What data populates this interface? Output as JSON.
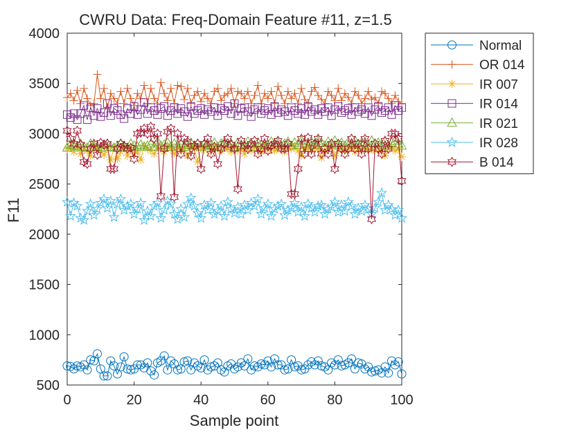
{
  "chart_data": {
    "type": "line",
    "title": "CWRU Data: Freq-Domain Feature #11, z=1.5",
    "xlabel": "Sample point",
    "ylabel": "F11",
    "xlim": [
      0,
      100
    ],
    "ylim": [
      500,
      4000
    ],
    "xticks": [
      0,
      20,
      40,
      60,
      80,
      100
    ],
    "yticks": [
      500,
      1000,
      1500,
      2000,
      2500,
      3000,
      3500,
      4000
    ],
    "grid": false,
    "legend_position": "outside-top-right",
    "x": [
      0,
      1,
      2,
      3,
      4,
      5,
      6,
      7,
      8,
      9,
      10,
      11,
      12,
      13,
      14,
      15,
      16,
      17,
      18,
      19,
      20,
      21,
      22,
      23,
      24,
      25,
      26,
      27,
      28,
      29,
      30,
      31,
      32,
      33,
      34,
      35,
      36,
      37,
      38,
      39,
      40,
      41,
      42,
      43,
      44,
      45,
      46,
      47,
      48,
      49,
      50,
      51,
      52,
      53,
      54,
      55,
      56,
      57,
      58,
      59,
      60,
      61,
      62,
      63,
      64,
      65,
      66,
      67,
      68,
      69,
      70,
      71,
      72,
      73,
      74,
      75,
      76,
      77,
      78,
      79,
      80,
      81,
      82,
      83,
      84,
      85,
      86,
      87,
      88,
      89,
      90,
      91,
      92,
      93,
      94,
      95,
      96,
      97,
      98,
      99,
      100
    ],
    "series": [
      {
        "name": "Normal",
        "color": "#0072BD",
        "marker": "circle",
        "values": [
          690,
          685,
          660,
          690,
          680,
          700,
          650,
          750,
          740,
          810,
          660,
          590,
          590,
          740,
          690,
          610,
          680,
          780,
          660,
          650,
          660,
          700,
          700,
          670,
          720,
          640,
          600,
          720,
          740,
          790,
          650,
          740,
          710,
          650,
          660,
          730,
          740,
          650,
          720,
          690,
          670,
          750,
          650,
          680,
          690,
          720,
          650,
          630,
          690,
          710,
          660,
          680,
          720,
          690,
          760,
          650,
          690,
          680,
          710,
          700,
          740,
          680,
          760,
          700,
          700,
          650,
          660,
          750,
          680,
          690,
          650,
          660,
          700,
          730,
          700,
          740,
          690,
          680,
          650,
          720,
          700,
          750,
          690,
          700,
          720,
          760,
          660,
          720,
          710,
          660,
          680,
          630,
          640,
          650,
          620,
          680,
          620,
          740,
          700,
          730,
          610
        ]
      },
      {
        "name": "OR 014",
        "color": "#D95319",
        "marker": "plus",
        "values": [
          3360,
          3400,
          3330,
          3430,
          3300,
          3450,
          3350,
          3280,
          3300,
          3590,
          3350,
          3450,
          3250,
          3400,
          3350,
          3300,
          3420,
          3300,
          3450,
          3350,
          3280,
          3400,
          3350,
          3480,
          3300,
          3450,
          3350,
          3300,
          3510,
          3400,
          3330,
          3450,
          3300,
          3480,
          3470,
          3340,
          3450,
          3300,
          3380,
          3420,
          3320,
          3400,
          3350,
          3300,
          3420,
          3450,
          3330,
          3380,
          3400,
          3450,
          3300,
          3420,
          3400,
          3350,
          3420,
          3300,
          3380,
          3480,
          3300,
          3400,
          3350,
          3420,
          3300,
          3470,
          3380,
          3300,
          3420,
          3350,
          3400,
          3300,
          3450,
          3340,
          3300,
          3420,
          3460,
          3380,
          3340,
          3300,
          3420,
          3380,
          3330,
          3450,
          3330,
          3400,
          3360,
          3300,
          3420,
          3380,
          3300,
          3350,
          3420,
          3340,
          3360,
          3300,
          3420,
          3400,
          3350,
          3300,
          3380,
          3320,
          3300
        ]
      },
      {
        "name": "IR 007",
        "color": "#EDB120",
        "marker": "asterisk",
        "values": [
          2850,
          2860,
          2820,
          2870,
          2800,
          2850,
          2830,
          2780,
          2880,
          2860,
          2830,
          2790,
          2850,
          2740,
          2860,
          2750,
          2820,
          2870,
          2780,
          2850,
          2800,
          2820,
          2740,
          2880,
          2850,
          2830,
          2800,
          2870,
          2850,
          2820,
          2880,
          2850,
          2800,
          2860,
          2830,
          2850,
          2780,
          2870,
          2850,
          2720,
          2860,
          2840,
          2870,
          2820,
          2880,
          2850,
          2830,
          2860,
          2850,
          2820,
          2870,
          2830,
          2850,
          2800,
          2860,
          2830,
          2870,
          2850,
          2820,
          2880,
          2840,
          2860,
          2830,
          2850,
          2870,
          2820,
          2860,
          2850,
          2880,
          2830,
          2780,
          2850,
          2870,
          2830,
          2860,
          2850,
          2760,
          2830,
          2870,
          2850,
          2780,
          2840,
          2860,
          2830,
          2850,
          2870,
          2820,
          2850,
          2830,
          2860,
          2840,
          2850,
          2830,
          2860,
          2820,
          2780,
          2850,
          2870,
          2830,
          2850,
          2770
        ]
      },
      {
        "name": "IR 014",
        "color": "#7E2F8E",
        "marker": "square",
        "values": [
          3190,
          3160,
          3200,
          3140,
          3200,
          3280,
          3140,
          3260,
          3180,
          3250,
          3170,
          3210,
          3300,
          3180,
          3250,
          3230,
          3190,
          3150,
          3250,
          3200,
          3270,
          3190,
          3240,
          3310,
          3200,
          3260,
          3230,
          3190,
          3250,
          3270,
          3180,
          3230,
          3260,
          3200,
          3250,
          3220,
          3170,
          3270,
          3200,
          3230,
          3250,
          3190,
          3240,
          3220,
          3260,
          3180,
          3250,
          3230,
          3270,
          3200,
          3300,
          3180,
          3250,
          3260,
          3220,
          3170,
          3240,
          3260,
          3200,
          3230,
          3250,
          3190,
          3270,
          3210,
          3240,
          3220,
          3180,
          3260,
          3230,
          3200,
          3250,
          3190,
          3270,
          3220,
          3240,
          3190,
          3250,
          3220,
          3260,
          3180,
          3240,
          3270,
          3210,
          3230,
          3250,
          3190,
          3260,
          3220,
          3240,
          3200,
          3260,
          3180,
          3240,
          3270,
          3210,
          3230,
          3260,
          3190,
          3280,
          3230,
          3260
        ]
      },
      {
        "name": "IR 021",
        "color": "#77AC30",
        "marker": "triangle",
        "values": [
          2860,
          2890,
          2880,
          2870,
          2900,
          2870,
          2860,
          2900,
          2880,
          2870,
          2860,
          2890,
          2900,
          2870,
          2860,
          2880,
          2900,
          2870,
          2860,
          2900,
          2880,
          2870,
          2890,
          2870,
          2880,
          2900,
          2870,
          2920,
          2880,
          2890,
          2910,
          2870,
          2900,
          2880,
          2900,
          2870,
          2890,
          2910,
          2880,
          2900,
          2870,
          2900,
          2890,
          2880,
          2910,
          2870,
          2900,
          2920,
          2880,
          2900,
          2870,
          2910,
          2890,
          2880,
          2920,
          2900,
          2870,
          2910,
          2890,
          2900,
          2880,
          2920,
          2890,
          2910,
          2880,
          2900,
          2920,
          2880,
          2910,
          2890,
          2930,
          2900,
          2880,
          2920,
          2890,
          2930,
          2910,
          2880,
          2920,
          2900,
          2930,
          2890,
          2910,
          2880,
          2920,
          2900,
          2930,
          2890,
          2910,
          2920,
          2880,
          2930,
          2900,
          2910,
          2890,
          2920,
          2880,
          2910,
          2930,
          2900,
          2880
        ]
      },
      {
        "name": "IR 028",
        "color": "#4DBEEE",
        "marker": "pentagram",
        "values": [
          2320,
          2180,
          2310,
          2280,
          2160,
          2140,
          2230,
          2300,
          2190,
          2250,
          2310,
          2350,
          2260,
          2330,
          2170,
          2300,
          2350,
          2240,
          2280,
          2300,
          2200,
          2250,
          2310,
          2140,
          2230,
          2180,
          2280,
          2310,
          2160,
          2240,
          2330,
          2300,
          2200,
          2150,
          2250,
          2170,
          2300,
          2360,
          2280,
          2210,
          2160,
          2290,
          2240,
          2310,
          2200,
          2230,
          2280,
          2180,
          2320,
          2250,
          2210,
          2270,
          2200,
          2290,
          2240,
          2310,
          2280,
          2350,
          2200,
          2260,
          2300,
          2180,
          2250,
          2280,
          2300,
          2190,
          2240,
          2260,
          2310,
          2220,
          2270,
          2180,
          2300,
          2260,
          2220,
          2280,
          2290,
          2200,
          2250,
          2270,
          2320,
          2220,
          2290,
          2230,
          2320,
          2280,
          2200,
          2260,
          2230,
          2290,
          2250,
          2200,
          2260,
          2320,
          2410,
          2240,
          2290,
          2250,
          2190,
          2240,
          2160
        ]
      },
      {
        "name": "B 014",
        "color": "#A2142F",
        "marker": "hexagram",
        "values": [
          3030,
          2950,
          2900,
          3030,
          2890,
          2720,
          2700,
          2850,
          2900,
          2790,
          2910,
          2890,
          2900,
          2650,
          2650,
          2850,
          2900,
          2880,
          2850,
          2860,
          2750,
          3000,
          3010,
          3050,
          3000,
          3070,
          2950,
          3000,
          2380,
          2850,
          3020,
          3050,
          2370,
          3000,
          2800,
          2950,
          2920,
          2780,
          2880,
          2900,
          2650,
          2900,
          2950,
          2800,
          2870,
          2700,
          2850,
          2900,
          2950,
          2890,
          2850,
          2450,
          2930,
          2880,
          2850,
          2900,
          2930,
          2800,
          2850,
          2950,
          2830,
          2880,
          2900,
          2930,
          2850,
          2850,
          2900,
          2400,
          2400,
          2650,
          2950,
          2800,
          2960,
          2800,
          2900,
          2950,
          2800,
          2850,
          2800,
          2900,
          2650,
          2900,
          2850,
          2800,
          2850,
          2950,
          2850,
          2900,
          2800,
          2950,
          2850,
          2150,
          2900,
          2850,
          2800,
          2930,
          2850,
          3000,
          3000,
          2950,
          2530
        ]
      }
    ]
  }
}
